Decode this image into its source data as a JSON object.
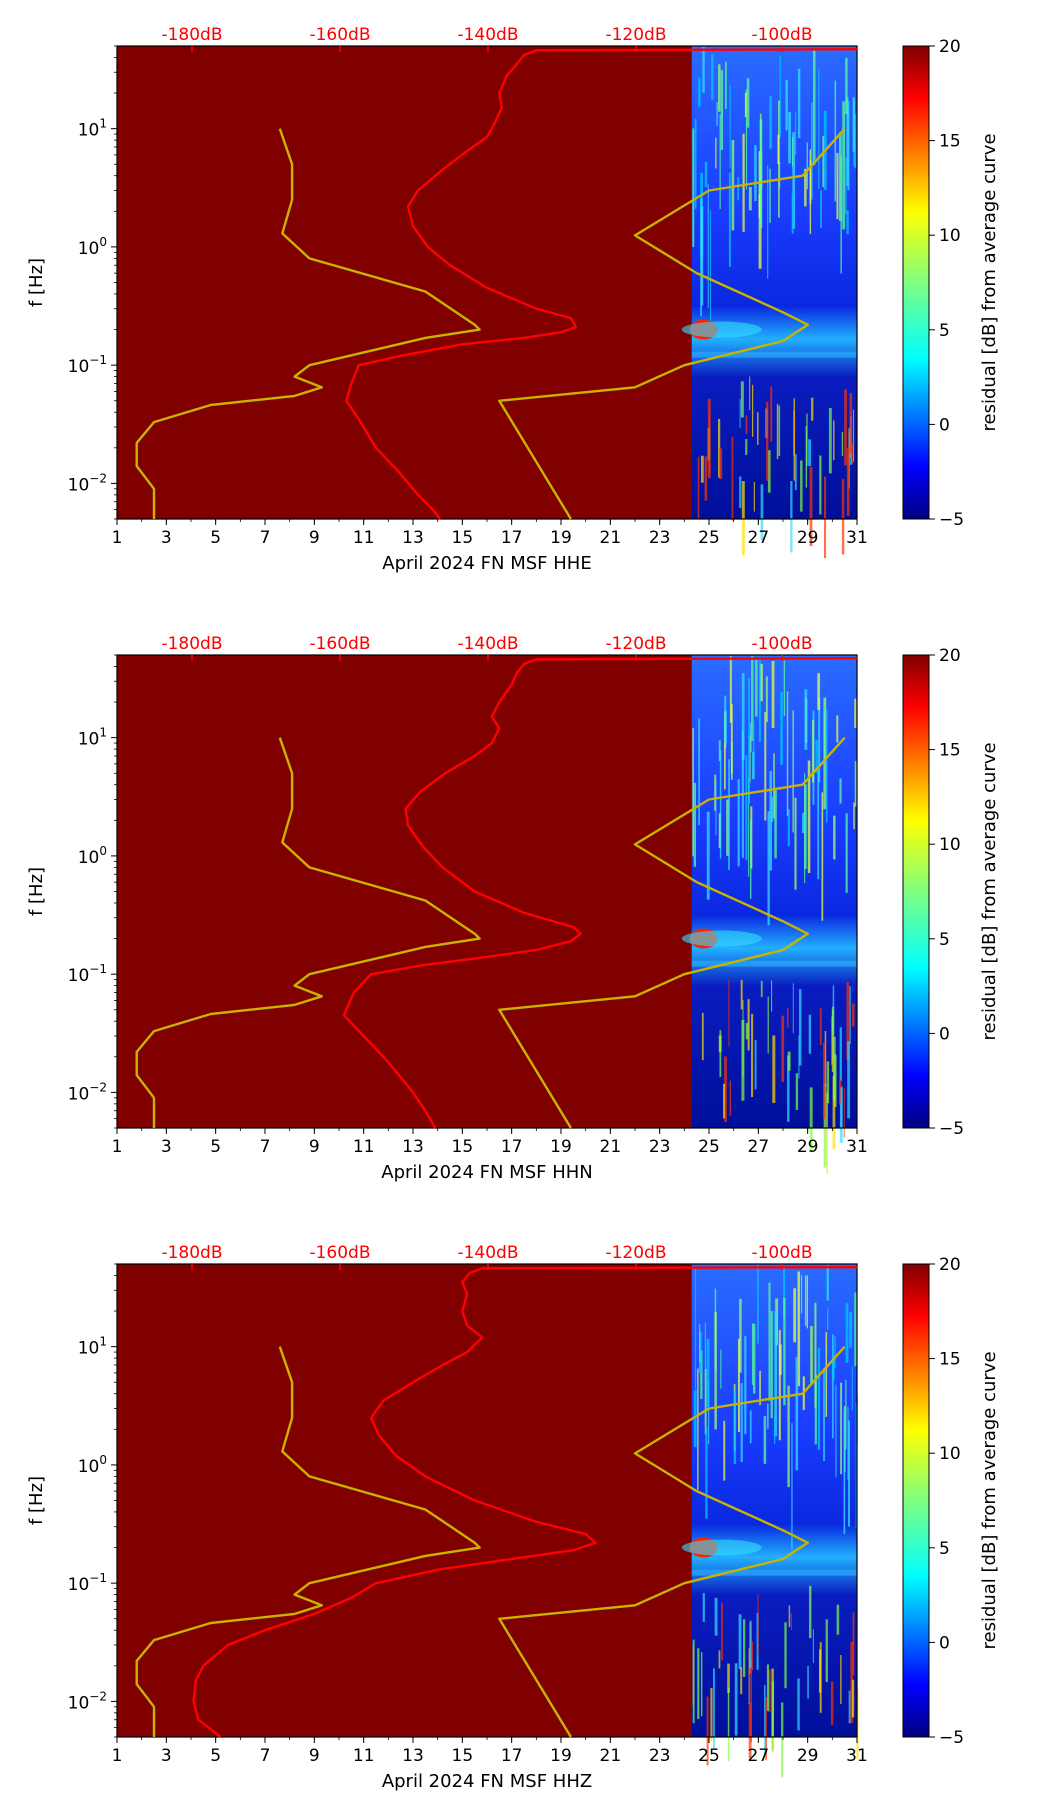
{
  "chart_data": [
    {
      "type": "heatmap",
      "xlabel": "April 2024 FN MSF  HHE",
      "ylabel": "f [Hz]",
      "x_ticks": [
        "1",
        "3",
        "5",
        "7",
        "9",
        "11",
        "13",
        "15",
        "17",
        "19",
        "21",
        "23",
        "25",
        "27",
        "29",
        "31"
      ],
      "y_ticks": [
        "10^-2",
        "10^-1",
        "10^0",
        "10^1"
      ],
      "xlim": [
        1,
        31
      ],
      "ylim_hz": [
        0.005,
        50
      ],
      "y_scale": "log",
      "top_axis_ticks": [
        "-180dB",
        "-160dB",
        "-140dB",
        "-120dB",
        "-100dB"
      ],
      "colorbar": {
        "label": "residual [dB] from average curve",
        "range": [
          -5,
          20
        ],
        "ticks": [
          "20",
          "15",
          "10",
          "5",
          "0",
          "−5"
        ]
      },
      "data_start_day": 24.3,
      "series": [
        {
          "color": "#ff0000",
          "points": [
            [
              14.1,
              0.005
            ],
            [
              13.8,
              0.006
            ],
            [
              13.2,
              0.008
            ],
            [
              12.5,
              0.012
            ],
            [
              11.5,
              0.02
            ],
            [
              10.8,
              0.035
            ],
            [
              10.3,
              0.05
            ],
            [
              10.5,
              0.07
            ],
            [
              10.8,
              0.1
            ],
            [
              12.5,
              0.12
            ],
            [
              15.0,
              0.15
            ],
            [
              17.5,
              0.17
            ],
            [
              19.0,
              0.19
            ],
            [
              19.6,
              0.21
            ],
            [
              19.4,
              0.25
            ],
            [
              18.0,
              0.3
            ],
            [
              16.0,
              0.45
            ],
            [
              14.5,
              0.7
            ],
            [
              13.6,
              1.0
            ],
            [
              13.0,
              1.5
            ],
            [
              12.8,
              2.2
            ],
            [
              13.2,
              3.0
            ],
            [
              14.2,
              4.5
            ],
            [
              15.2,
              6.5
            ],
            [
              16.0,
              8.5
            ],
            [
              16.3,
              11
            ],
            [
              16.6,
              15
            ],
            [
              16.5,
              20
            ],
            [
              16.8,
              28
            ],
            [
              17.2,
              35
            ],
            [
              17.5,
              42
            ],
            [
              18.0,
              46
            ],
            [
              31,
              47
            ]
          ]
        },
        {
          "color": "#c8b400",
          "points": [
            [
              2.5,
              0.005
            ],
            [
              2.5,
              0.006
            ],
            [
              2.5,
              0.009
            ],
            [
              1.8,
              0.014
            ],
            [
              1.8,
              0.022
            ],
            [
              2.5,
              0.033
            ],
            [
              4.8,
              0.046
            ],
            [
              8.2,
              0.055
            ],
            [
              9.3,
              0.065
            ],
            [
              8.2,
              0.08
            ],
            [
              8.8,
              0.1
            ],
            [
              13.5,
              0.17
            ],
            [
              15.7,
              0.2
            ],
            [
              15.5,
              0.22
            ],
            [
              13.5,
              0.42
            ],
            [
              8.8,
              0.8
            ],
            [
              7.7,
              1.3
            ],
            [
              8.1,
              2.5
            ],
            [
              8.1,
              5.0
            ],
            [
              7.6,
              10.0
            ]
          ]
        },
        {
          "color": "#c8b400",
          "points": [
            [
              19.4,
              0.005
            ],
            [
              16.5,
              0.05
            ],
            [
              22.0,
              0.065
            ],
            [
              24.0,
              0.1
            ],
            [
              28.0,
              0.16
            ],
            [
              29.0,
              0.22
            ],
            [
              28.0,
              0.28
            ],
            [
              24.5,
              0.6
            ],
            [
              22.0,
              1.25
            ],
            [
              25.0,
              3.0
            ],
            [
              28.8,
              4.0
            ],
            [
              30.5,
              10.0
            ]
          ]
        }
      ]
    },
    {
      "type": "heatmap",
      "xlabel": "April 2024 FN MSF  HHN",
      "ylabel": "f [Hz]",
      "x_ticks": [
        "1",
        "3",
        "5",
        "7",
        "9",
        "11",
        "13",
        "15",
        "17",
        "19",
        "21",
        "23",
        "25",
        "27",
        "29",
        "31"
      ],
      "y_ticks": [
        "10^-2",
        "10^-1",
        "10^0",
        "10^1"
      ],
      "xlim": [
        1,
        31
      ],
      "ylim_hz": [
        0.005,
        50
      ],
      "y_scale": "log",
      "top_axis_ticks": [
        "-180dB",
        "-160dB",
        "-140dB",
        "-120dB",
        "-100dB"
      ],
      "colorbar": {
        "label": "residual [dB] from average curve",
        "range": [
          -5,
          20
        ],
        "ticks": [
          "20",
          "15",
          "10",
          "5",
          "0",
          "−5"
        ]
      },
      "data_start_day": 24.3,
      "series": [
        {
          "color": "#ff0000",
          "points": [
            [
              13.9,
              0.005
            ],
            [
              13.5,
              0.007
            ],
            [
              13.0,
              0.01
            ],
            [
              12.0,
              0.018
            ],
            [
              11.0,
              0.03
            ],
            [
              10.2,
              0.045
            ],
            [
              10.6,
              0.07
            ],
            [
              11.3,
              0.1
            ],
            [
              13.5,
              0.12
            ],
            [
              16.0,
              0.14
            ],
            [
              18.0,
              0.16
            ],
            [
              19.4,
              0.19
            ],
            [
              19.8,
              0.22
            ],
            [
              19.5,
              0.25
            ],
            [
              17.5,
              0.33
            ],
            [
              15.5,
              0.5
            ],
            [
              14.2,
              0.8
            ],
            [
              13.4,
              1.2
            ],
            [
              12.8,
              1.8
            ],
            [
              12.7,
              2.5
            ],
            [
              13.3,
              3.5
            ],
            [
              14.3,
              5.0
            ],
            [
              15.5,
              7.0
            ],
            [
              16.2,
              9.0
            ],
            [
              16.5,
              12
            ],
            [
              16.2,
              15
            ],
            [
              16.5,
              20
            ],
            [
              17.0,
              28
            ],
            [
              17.2,
              35
            ],
            [
              17.5,
              42
            ],
            [
              18.0,
              46
            ],
            [
              31,
              47
            ]
          ]
        },
        {
          "color": "#c8b400",
          "points": [
            [
              2.5,
              0.005
            ],
            [
              2.5,
              0.006
            ],
            [
              2.5,
              0.009
            ],
            [
              1.8,
              0.014
            ],
            [
              1.8,
              0.022
            ],
            [
              2.5,
              0.033
            ],
            [
              4.8,
              0.046
            ],
            [
              8.2,
              0.055
            ],
            [
              9.3,
              0.065
            ],
            [
              8.2,
              0.08
            ],
            [
              8.8,
              0.1
            ],
            [
              13.5,
              0.17
            ],
            [
              15.7,
              0.2
            ],
            [
              15.5,
              0.22
            ],
            [
              13.5,
              0.42
            ],
            [
              8.8,
              0.8
            ],
            [
              7.7,
              1.3
            ],
            [
              8.1,
              2.5
            ],
            [
              8.1,
              5.0
            ],
            [
              7.6,
              10.0
            ]
          ]
        },
        {
          "color": "#c8b400",
          "points": [
            [
              19.4,
              0.005
            ],
            [
              16.5,
              0.05
            ],
            [
              22.0,
              0.065
            ],
            [
              24.0,
              0.1
            ],
            [
              28.0,
              0.16
            ],
            [
              29.0,
              0.22
            ],
            [
              28.0,
              0.28
            ],
            [
              24.5,
              0.6
            ],
            [
              22.0,
              1.25
            ],
            [
              25.0,
              3.0
            ],
            [
              28.8,
              4.0
            ],
            [
              30.5,
              10.0
            ]
          ]
        }
      ]
    },
    {
      "type": "heatmap",
      "xlabel": "April 2024 FN MSF  HHZ",
      "ylabel": "f [Hz]",
      "x_ticks": [
        "1",
        "3",
        "5",
        "7",
        "9",
        "11",
        "13",
        "15",
        "17",
        "19",
        "21",
        "23",
        "25",
        "27",
        "29",
        "31"
      ],
      "y_ticks": [
        "10^-2",
        "10^-1",
        "10^0",
        "10^1"
      ],
      "xlim": [
        1,
        31
      ],
      "ylim_hz": [
        0.005,
        50
      ],
      "y_scale": "log",
      "top_axis_ticks": [
        "-180dB",
        "-160dB",
        "-140dB",
        "-120dB",
        "-100dB"
      ],
      "colorbar": {
        "label": "residual [dB] from average curve",
        "range": [
          -5,
          20
        ],
        "ticks": [
          "20",
          "15",
          "10",
          "5",
          "0",
          "−5"
        ]
      },
      "data_start_day": 24.3,
      "series": [
        {
          "color": "#ff0000",
          "points": [
            [
              5.2,
              0.005
            ],
            [
              4.3,
              0.007
            ],
            [
              4.1,
              0.01
            ],
            [
              4.2,
              0.015
            ],
            [
              4.5,
              0.02
            ],
            [
              5.5,
              0.03
            ],
            [
              7.0,
              0.04
            ],
            [
              9.0,
              0.055
            ],
            [
              10.5,
              0.075
            ],
            [
              11.5,
              0.1
            ],
            [
              14.0,
              0.13
            ],
            [
              17.0,
              0.16
            ],
            [
              19.5,
              0.19
            ],
            [
              20.4,
              0.22
            ],
            [
              20.0,
              0.26
            ],
            [
              18.0,
              0.33
            ],
            [
              15.5,
              0.5
            ],
            [
              13.5,
              0.8
            ],
            [
              12.3,
              1.2
            ],
            [
              11.6,
              1.8
            ],
            [
              11.3,
              2.5
            ],
            [
              11.8,
              3.5
            ],
            [
              13.0,
              5.0
            ],
            [
              14.2,
              7.0
            ],
            [
              15.2,
              9.0
            ],
            [
              15.8,
              12
            ],
            [
              15.2,
              15
            ],
            [
              15.0,
              20
            ],
            [
              15.2,
              28
            ],
            [
              15.0,
              35
            ],
            [
              15.3,
              42
            ],
            [
              15.8,
              46
            ],
            [
              31,
              47
            ]
          ]
        },
        {
          "color": "#c8b400",
          "points": [
            [
              2.5,
              0.005
            ],
            [
              2.5,
              0.006
            ],
            [
              2.5,
              0.009
            ],
            [
              1.8,
              0.014
            ],
            [
              1.8,
              0.022
            ],
            [
              2.5,
              0.033
            ],
            [
              4.8,
              0.046
            ],
            [
              8.2,
              0.055
            ],
            [
              9.3,
              0.065
            ],
            [
              8.2,
              0.08
            ],
            [
              8.8,
              0.1
            ],
            [
              13.5,
              0.17
            ],
            [
              15.7,
              0.2
            ],
            [
              15.5,
              0.22
            ],
            [
              13.5,
              0.42
            ],
            [
              8.8,
              0.8
            ],
            [
              7.7,
              1.3
            ],
            [
              8.1,
              2.5
            ],
            [
              8.1,
              5.0
            ],
            [
              7.6,
              10.0
            ]
          ]
        },
        {
          "color": "#c8b400",
          "points": [
            [
              19.4,
              0.005
            ],
            [
              16.5,
              0.05
            ],
            [
              22.0,
              0.065
            ],
            [
              24.0,
              0.1
            ],
            [
              28.0,
              0.16
            ],
            [
              29.0,
              0.22
            ],
            [
              28.0,
              0.28
            ],
            [
              24.5,
              0.6
            ],
            [
              22.0,
              1.25
            ],
            [
              25.0,
              3.0
            ],
            [
              28.8,
              4.0
            ],
            [
              30.5,
              10.0
            ]
          ]
        }
      ]
    }
  ]
}
